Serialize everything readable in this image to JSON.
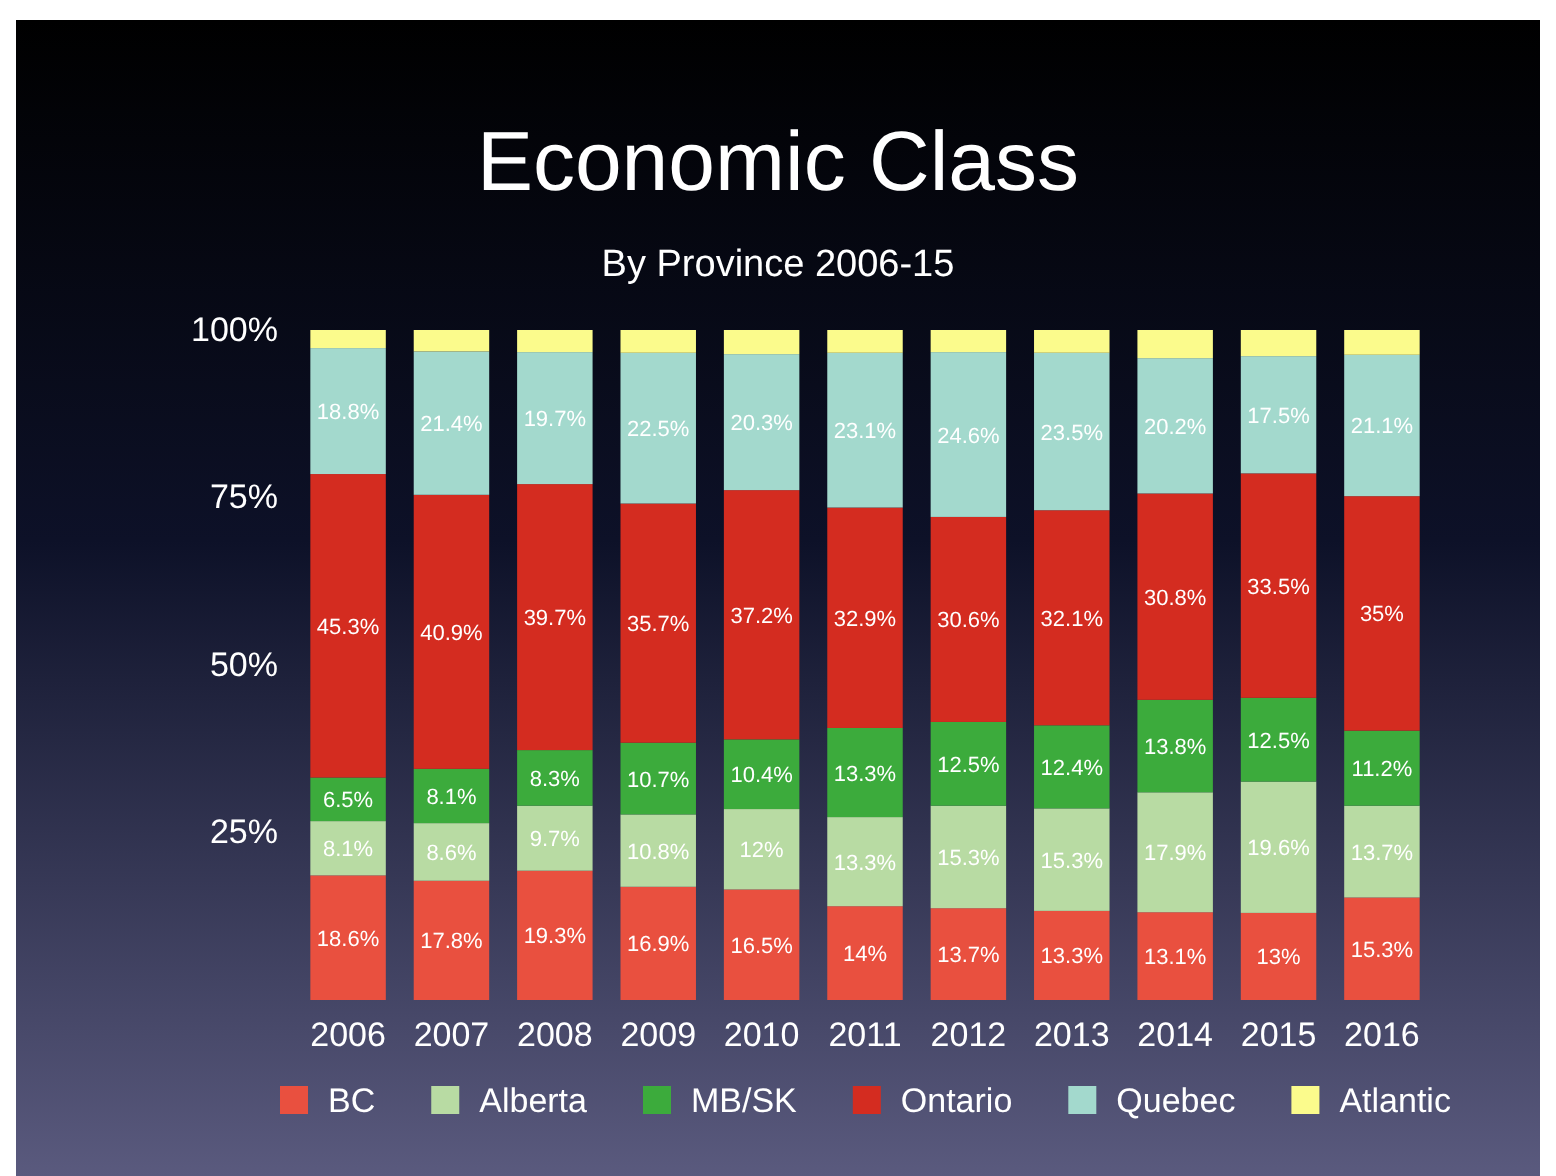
{
  "chart_data": {
    "type": "bar",
    "title": "Economic Class",
    "subtitle": "By Province 2006-15",
    "stacked": true,
    "categories": [
      "2006",
      "2007",
      "2008",
      "2009",
      "2010",
      "2011",
      "2012",
      "2013",
      "2014",
      "2015",
      "2016"
    ],
    "ylim": [
      0,
      100
    ],
    "yticks": [
      {
        "value": 25,
        "label": "25%"
      },
      {
        "value": 50,
        "label": "50%"
      },
      {
        "value": 75,
        "label": "75%"
      },
      {
        "value": 100,
        "label": "100%"
      }
    ],
    "grid": false,
    "legend": "bottom",
    "series": [
      {
        "name": "BC",
        "color": "#e9503f",
        "values": [
          18.6,
          17.8,
          19.3,
          16.9,
          16.5,
          14,
          13.7,
          13.3,
          13.1,
          13,
          15.3
        ],
        "value_labels": [
          "18.6%",
          "17.8%",
          "19.3%",
          "16.9%",
          "16.5%",
          "14%",
          "13.7%",
          "13.3%",
          "13.1%",
          "13%",
          "15.3%"
        ]
      },
      {
        "name": "Alberta",
        "color": "#b8dba3",
        "values": [
          8.1,
          8.6,
          9.7,
          10.8,
          12,
          13.3,
          15.3,
          15.3,
          17.9,
          19.6,
          13.7
        ],
        "value_labels": [
          "8.1%",
          "8.6%",
          "9.7%",
          "10.8%",
          "12%",
          "13.3%",
          "15.3%",
          "15.3%",
          "17.9%",
          "19.6%",
          "13.7%"
        ]
      },
      {
        "name": "MB/SK",
        "color": "#3cab3c",
        "values": [
          6.5,
          8.1,
          8.3,
          10.7,
          10.4,
          13.3,
          12.5,
          12.4,
          13.8,
          12.5,
          11.2
        ],
        "value_labels": [
          "6.5%",
          "8.1%",
          "8.3%",
          "10.7%",
          "10.4%",
          "13.3%",
          "12.5%",
          "12.4%",
          "13.8%",
          "12.5%",
          "11.2%"
        ]
      },
      {
        "name": "Ontario",
        "color": "#d42c20",
        "values": [
          45.3,
          40.9,
          39.7,
          35.7,
          37.2,
          32.9,
          30.6,
          32.1,
          30.8,
          33.5,
          35
        ],
        "value_labels": [
          "45.3%",
          "40.9%",
          "39.7%",
          "35.7%",
          "37.2%",
          "32.9%",
          "30.6%",
          "32.1%",
          "30.8%",
          "33.5%",
          "35%"
        ]
      },
      {
        "name": "Quebec",
        "color": "#a3d9cd",
        "values": [
          18.8,
          21.4,
          19.7,
          22.5,
          20.3,
          23.1,
          24.6,
          23.5,
          20.2,
          17.5,
          21.1
        ],
        "value_labels": [
          "18.8%",
          "21.4%",
          "19.7%",
          "22.5%",
          "20.3%",
          "23.1%",
          "24.6%",
          "23.5%",
          "20.2%",
          "17.5%",
          "21.1%"
        ]
      },
      {
        "name": "Atlantic",
        "color": "#fbfb8c",
        "values": [
          2.7,
          3.2,
          3.3,
          3.4,
          3.6,
          3.4,
          3.3,
          3.4,
          4.2,
          3.9,
          3.7
        ],
        "value_labels": [
          null,
          null,
          null,
          null,
          null,
          null,
          null,
          null,
          null,
          null,
          null
        ]
      }
    ]
  }
}
